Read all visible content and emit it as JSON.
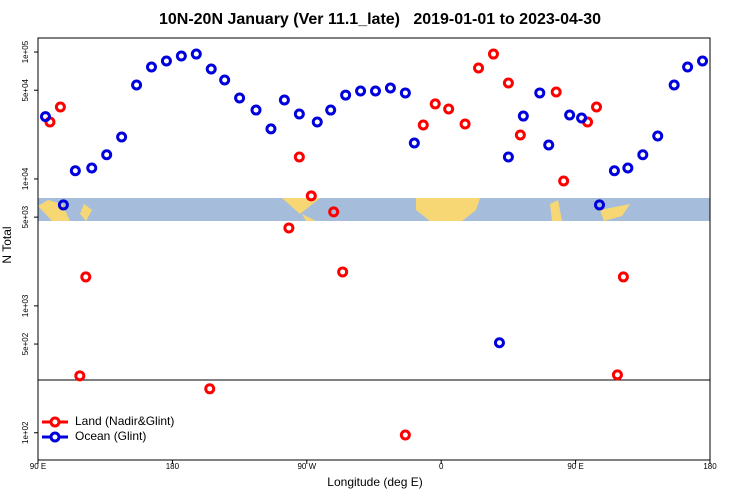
{
  "chart_data": {
    "type": "scatter",
    "title": "10N-20N January (Ver 11.1_late)   2019-01-01 to 2023-04-30",
    "x_label": "Longitude (deg E)",
    "y_label": "N Total",
    "log_y": true,
    "legend": "lower left",
    "xlim": [
      90,
      540
    ],
    "xticks": [
      {
        "value": 90,
        "label": "90 E"
      },
      {
        "value": 180,
        "label": "180"
      },
      {
        "value": 270,
        "label": "90 W"
      },
      {
        "value": 360,
        "label": "0"
      },
      {
        "value": 450,
        "label": "90 E"
      },
      {
        "value": 540,
        "label": "180"
      }
    ],
    "ylim": [
      61,
      129000
    ],
    "yticks": [
      {
        "value": 100000,
        "label": "1e+05"
      },
      {
        "value": 50000,
        "label": "5e+04"
      },
      {
        "value": 10000,
        "label": "1e+04"
      },
      {
        "value": 5000,
        "label": "5e+03"
      },
      {
        "value": 1000,
        "label": "1e+03"
      },
      {
        "value": 500,
        "label": "5e+02"
      },
      {
        "value": 100,
        "label": "1e+02"
      }
    ],
    "series": [
      {
        "name": "Land (Nadir&Glint)",
        "color": "#ff0000",
        "x": [
          98,
          105,
          118,
          122,
          205,
          258,
          265,
          273,
          288,
          294,
          336,
          348,
          356,
          365,
          376,
          385,
          395,
          405,
          413,
          437,
          442,
          458,
          464,
          478,
          482
        ],
        "values": [
          28100,
          36900,
          281,
          1690,
          222,
          4110,
          14900,
          7350,
          5500,
          1850,
          96,
          26600,
          39000,
          35600,
          27100,
          74800,
          96400,
          57000,
          22200,
          48400,
          9640,
          28100,
          36900,
          286,
          1690
        ]
      },
      {
        "name": "Ocean (Glint)",
        "color": "#0000dd",
        "x": [
          95,
          107,
          115,
          126,
          136,
          146,
          156,
          166,
          176,
          186,
          196,
          206,
          215,
          225,
          236,
          246,
          255,
          265,
          277,
          286,
          296,
          306,
          316,
          326,
          336,
          342,
          399,
          405,
          415,
          426,
          432,
          446,
          454,
          466,
          476,
          485,
          495,
          505,
          516,
          525,
          535
        ],
        "values": [
          31000,
          6240,
          11600,
          12200,
          15500,
          21400,
          55000,
          76200,
          85000,
          93000,
          96400,
          73500,
          60200,
          43400,
          34900,
          24800,
          41900,
          32500,
          28100,
          34900,
          45800,
          49300,
          49300,
          52100,
          47600,
          19200,
          512,
          14900,
          31300,
          47600,
          18500,
          31900,
          30200,
          6240,
          11600,
          12200,
          15500,
          21800,
          55000,
          76200,
          85000
        ]
      }
    ]
  }
}
